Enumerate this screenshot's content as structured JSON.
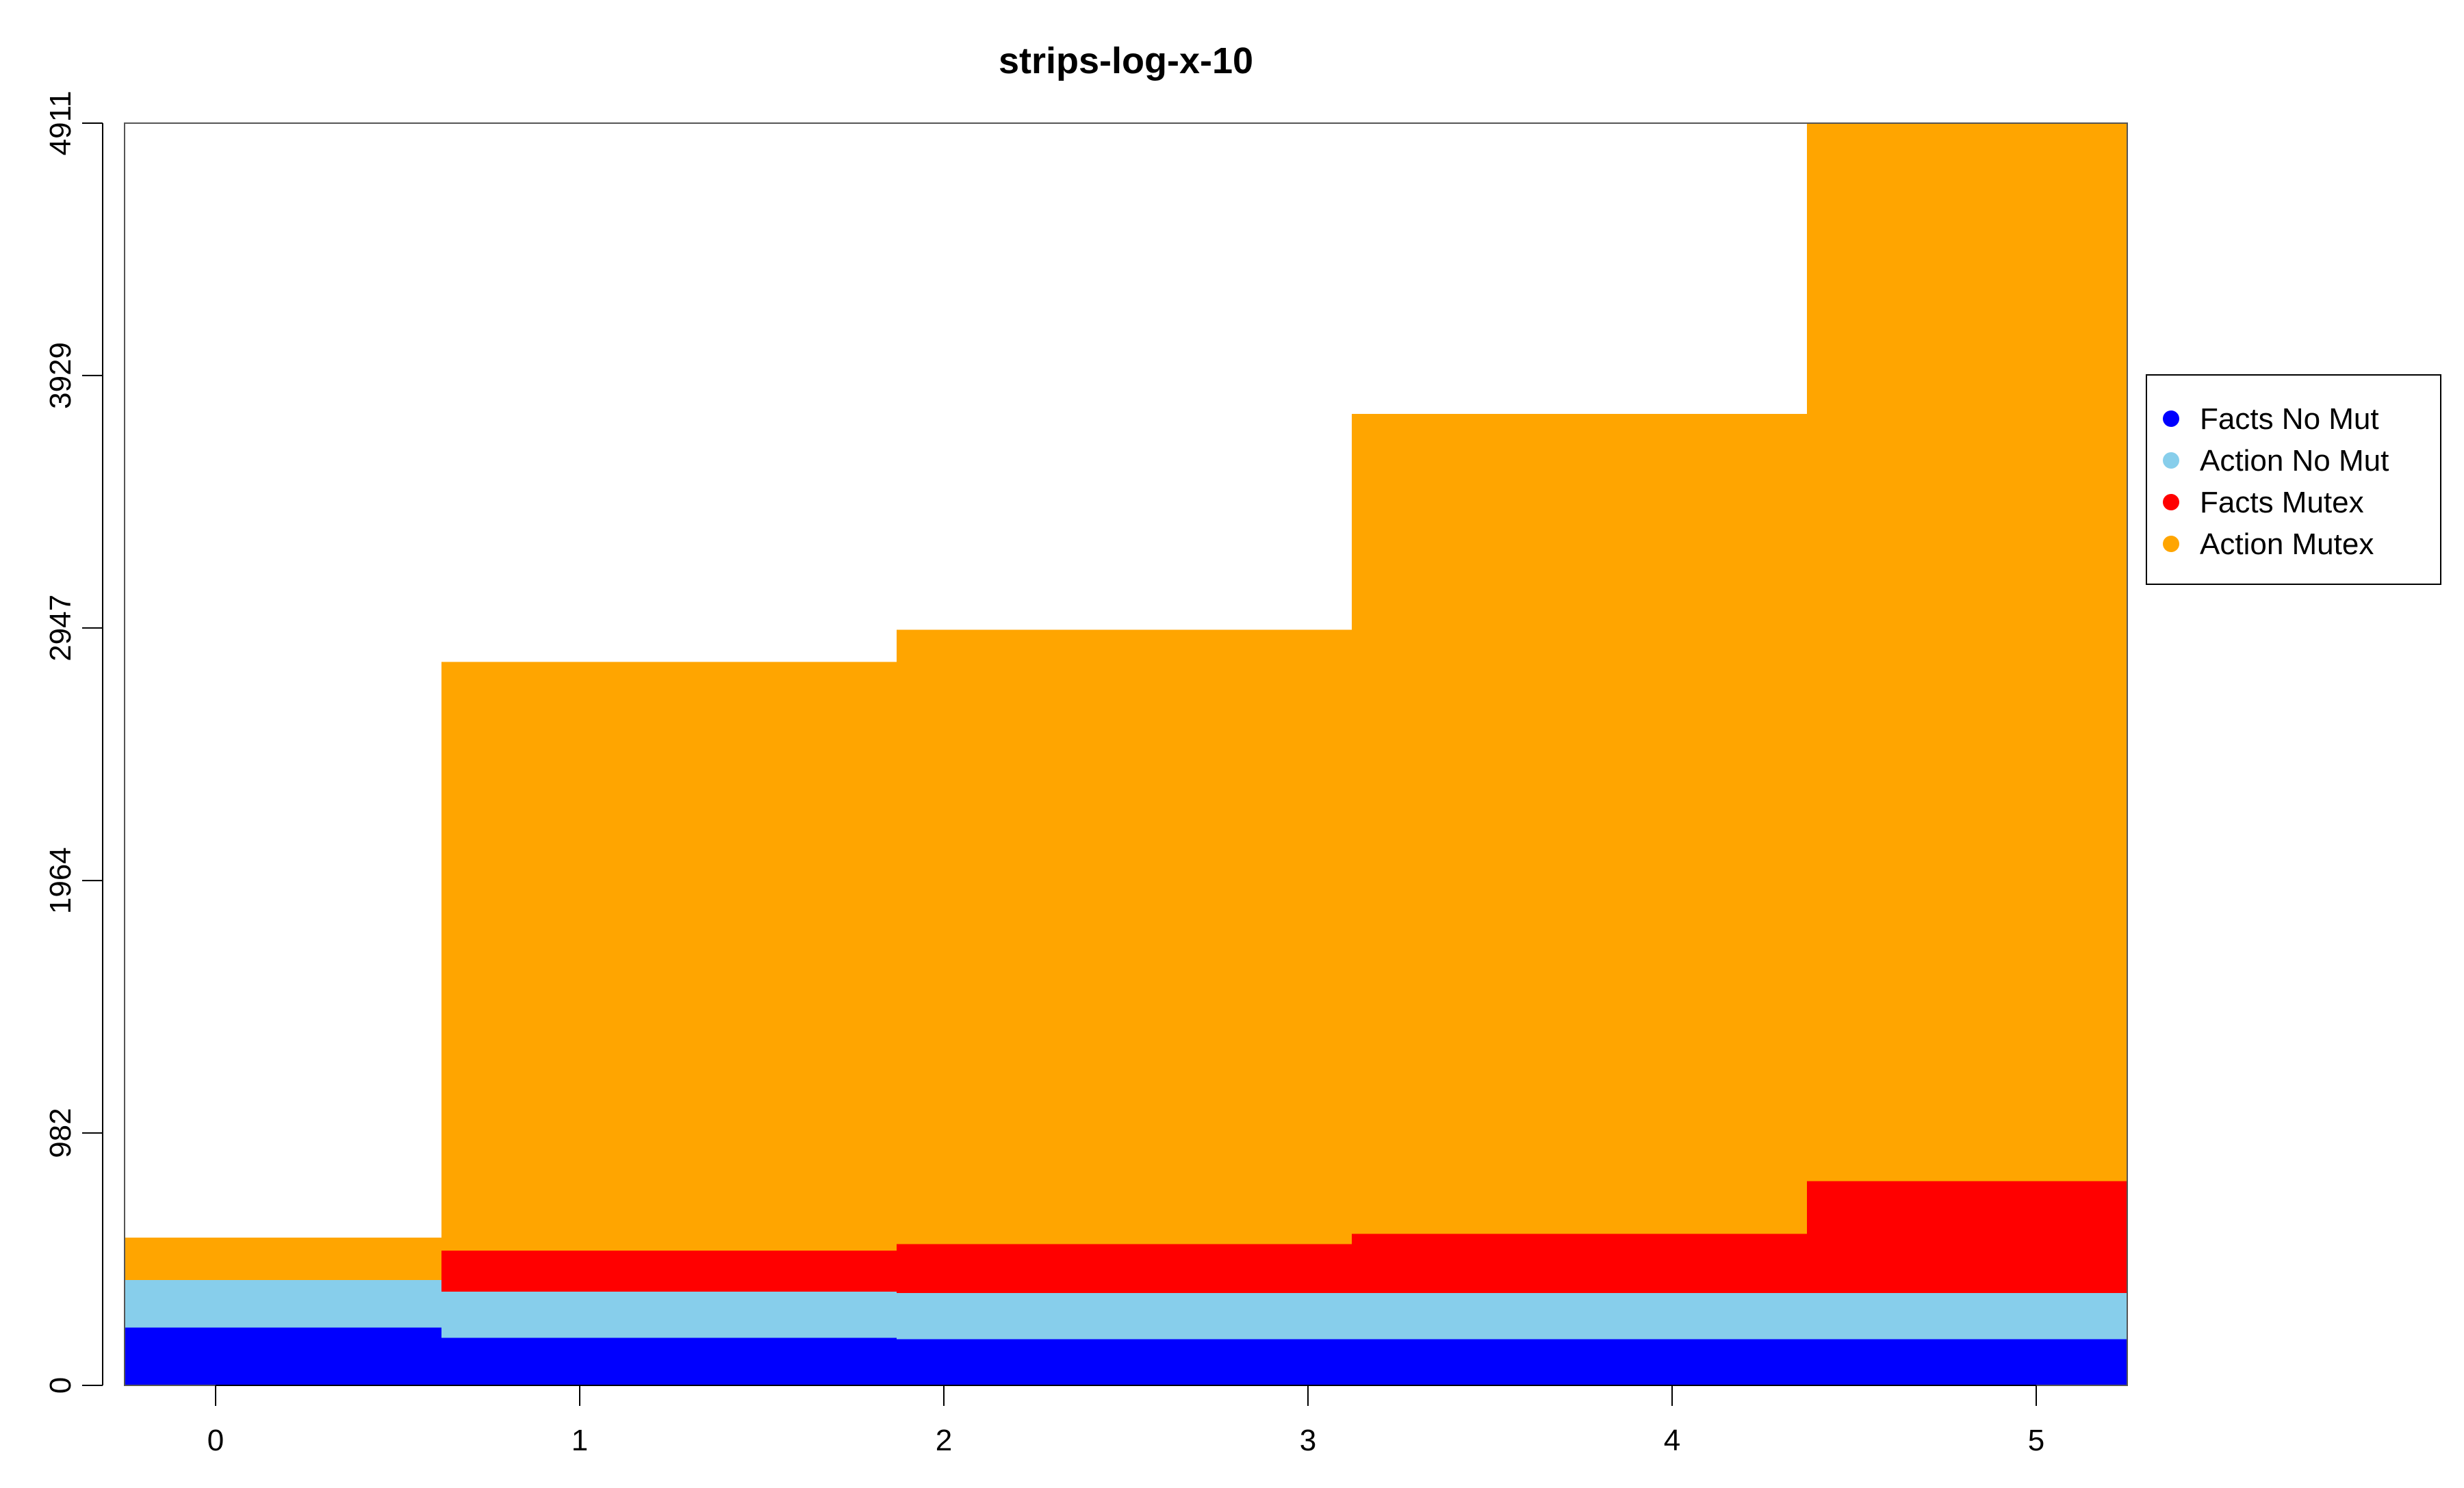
{
  "chart_data": {
    "type": "area",
    "title": "strips-log-x-10",
    "xlabel": "",
    "ylabel": "",
    "x_ticks": [
      "0",
      "1",
      "2",
      "3",
      "4",
      "5"
    ],
    "y_ticks": [
      "0",
      "982",
      "1964",
      "2947",
      "3929",
      "4911"
    ],
    "ylim": [
      0,
      4911
    ],
    "step_boundaries": [
      -0.25,
      0.62,
      1.87,
      3.12,
      4.37,
      5.25
    ],
    "steps": [
      0,
      1,
      2,
      3,
      4
    ],
    "series": [
      {
        "name": "Facts No Mut",
        "color": "#0000FF",
        "values": [
          225,
          185,
          180,
          180,
          180
        ]
      },
      {
        "name": "Action No Mut",
        "color": "#87CEEB",
        "values": [
          185,
          180,
          180,
          180,
          180
        ]
      },
      {
        "name": "Facts Mutex",
        "color": "#FF0000",
        "values": [
          0,
          160,
          190,
          230,
          435
        ]
      },
      {
        "name": "Action Mutex",
        "color": "#FFA500",
        "values": [
          165,
          2290,
          2390,
          3190,
          4116
        ]
      }
    ],
    "legend": {
      "position": "right"
    },
    "grid": false
  }
}
